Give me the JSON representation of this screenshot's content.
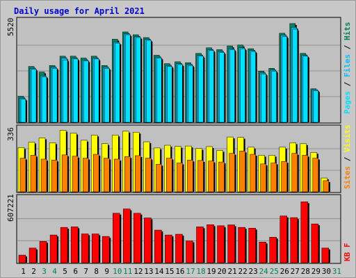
{
  "title": "Daily usage for April 2021",
  "colors": {
    "hits": "#00805c",
    "files": "#00c0ff",
    "pages": "#00e0ff",
    "sites": "#ff8000",
    "visits": "#ffff00",
    "kbytes": "#ff0000",
    "weekday_label": "#000000",
    "weekend_label": "#00805c",
    "panel_bg": "#c0c0c0"
  },
  "right_labels": {
    "top": [
      {
        "text": "Pages",
        "color": "#00e0ff"
      },
      {
        "text": " / ",
        "color": "#000000"
      },
      {
        "text": "Files",
        "color": "#00c0ff"
      },
      {
        "text": " / ",
        "color": "#000000"
      },
      {
        "text": "Hits",
        "color": "#00805c"
      }
    ],
    "middle": [
      {
        "text": "Sites",
        "color": "#ff8000"
      },
      {
        "text": " / ",
        "color": "#000000"
      },
      {
        "text": "Visits",
        "color": "#ffff00"
      }
    ],
    "bottom": [
      {
        "text": "KB F",
        "color": "#ff0000"
      }
    ]
  },
  "chart_data": {
    "type": "bar",
    "title": "Daily usage for April 2021",
    "days": [
      "1",
      "2",
      "3",
      "4",
      "5",
      "6",
      "7",
      "8",
      "9",
      "10",
      "11",
      "12",
      "13",
      "14",
      "15",
      "16",
      "17",
      "18",
      "19",
      "20",
      "21",
      "22",
      "23",
      "24",
      "25",
      "26",
      "27",
      "28",
      "29",
      "30",
      "31"
    ],
    "weekend_days": [
      "3",
      "4",
      "10",
      "11",
      "17",
      "18",
      "24",
      "25",
      "31"
    ],
    "panels": [
      {
        "id": "top",
        "ymax_label": "5520",
        "ymax": 5520,
        "series": [
          {
            "name": "Hits",
            "values": [
              1400,
              3000,
              2700,
              3050,
              3550,
              3550,
              3450,
              3550,
              3050,
              4460,
              4850,
              4700,
              4550,
              3600,
              3150,
              3250,
              3200,
              3700,
              4000,
              3900,
              4100,
              4150,
              3950,
              2750,
              2900,
              4780,
              5300,
              3700,
              1800,
              0,
              0
            ]
          },
          {
            "name": "Files",
            "values": [
              1300,
              2900,
              2500,
              2950,
              3450,
              3450,
              3350,
              3450,
              2950,
              4300,
              4750,
              4600,
              4450,
              3500,
              3050,
              3150,
              3100,
              3600,
              3900,
              3800,
              3950,
              4000,
              3850,
              2650,
              2800,
              4680,
              5100,
              3600,
              1750,
              0,
              0
            ]
          },
          {
            "name": "Pages",
            "values": [
              1250,
              2850,
              2450,
              2900,
              3350,
              3400,
              3300,
              3400,
              2900,
              4250,
              4700,
              4550,
              4400,
              3450,
              3000,
              3100,
              3050,
              3550,
              3850,
              3750,
              3900,
              3950,
              3800,
              2600,
              2750,
              4600,
              5000,
              3550,
              1700,
              0,
              0
            ]
          }
        ]
      },
      {
        "id": "middle",
        "ymax_label": "336",
        "ymax": 336,
        "series": [
          {
            "name": "Visits",
            "values": [
              230,
              258,
              280,
              255,
              320,
              305,
              268,
              295,
              250,
              295,
              315,
              310,
              260,
              228,
              242,
              236,
              238,
              225,
              235,
              215,
              285,
              283,
              232,
              190,
              190,
              232,
              255,
              250,
              205,
              72,
              0
            ]
          },
          {
            "name": "Sites",
            "values": [
              175,
              190,
              170,
              165,
              192,
              185,
              175,
              195,
              175,
              170,
              183,
              188,
              175,
              143,
              175,
              150,
              165,
              163,
              160,
              155,
              200,
              212,
              195,
              145,
              150,
              158,
              200,
              190,
              175,
              58,
              0
            ]
          }
        ]
      },
      {
        "id": "bottom",
        "ymax_label": "607221",
        "ymax": 607221,
        "series": [
          {
            "name": "KBytes",
            "values": [
              70000,
              135000,
              196000,
              255000,
              325000,
              330000,
              265000,
              265000,
              242000,
              455000,
              495000,
              455000,
              412000,
              300000,
              255000,
              262000,
              200000,
              330000,
              350000,
              340000,
              348000,
              325000,
              318000,
              190000,
              235000,
              430000,
              415000,
              560000,
              357000,
              135000,
              0
            ]
          }
        ]
      }
    ]
  }
}
